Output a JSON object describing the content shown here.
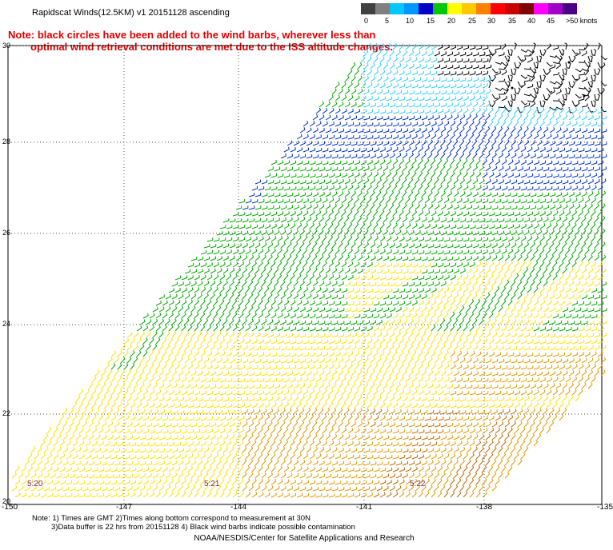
{
  "title": "Rapidscat Winds(12.5KM) v1 20151128 ascending",
  "note_red": {
    "line1": "Note: black circles have been added to the wind barbs, wherever less than",
    "line2": "optimal wind retrieval conditions are met due to the ISS altitude changes."
  },
  "colorbar": {
    "unit": "knots",
    "labels": [
      "0",
      "5",
      "10",
      "15",
      "20",
      "25",
      "30",
      "35",
      "40",
      "45",
      ">50 knots"
    ],
    "colors": [
      "#404040",
      "#808080",
      "#00c8ff",
      "#0096ff",
      "#0000c8",
      "#00c800",
      "#ffff00",
      "#ffc800",
      "#ff8000",
      "#ff0000",
      "#c80000",
      "#800000",
      "#ff00ff",
      "#a000c8",
      "#4b0082"
    ]
  },
  "latitude_labels": [
    "30",
    "28",
    "26",
    "24",
    "22",
    "20"
  ],
  "longitude_labels": [
    "-150",
    "-147",
    "-144",
    "-141",
    "-138",
    "-135"
  ],
  "time_labels": [
    "5:20",
    "5:21",
    "5:22"
  ],
  "footnote": {
    "line1": "Note: 1) Times are GMT 2)Times along bottom correspond to measurement at 30N",
    "line2": "3)Data buffer is 22 hrs from 20151128 4) Black wind barbs indicate possible contamination"
  },
  "credit": "NOAA/NESDIS/Center for Satellite Applications and Research",
  "wind_colors": {
    "black": "#000000",
    "cyan": "#33ccff",
    "blue": "#0033cc",
    "green": "#00aa00",
    "yellow": "#ffe000",
    "orange": "#e09a00",
    "brown": "#c06a00"
  }
}
